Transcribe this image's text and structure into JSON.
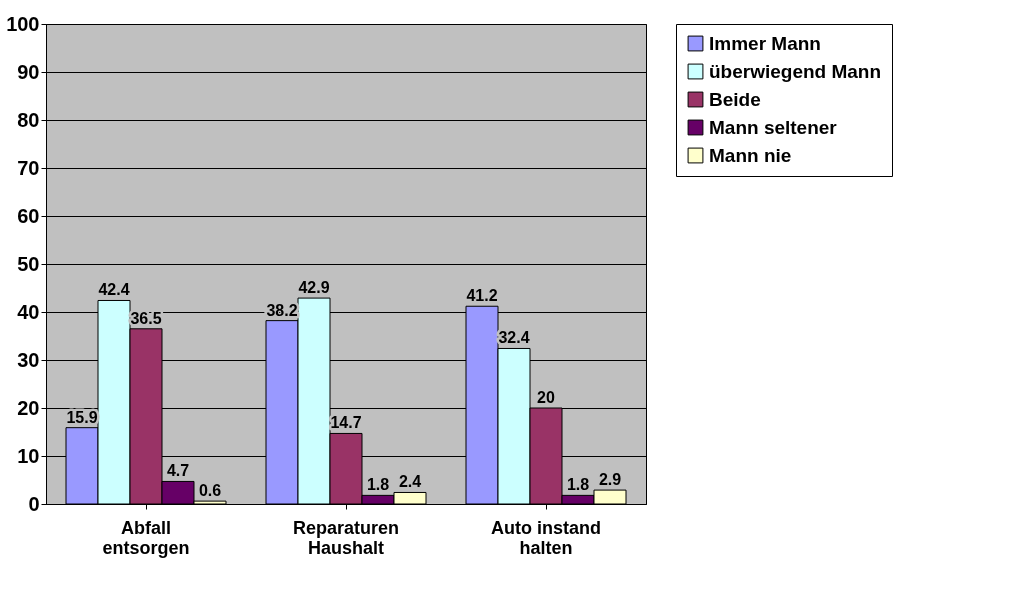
{
  "chart_data": {
    "type": "bar",
    "categories": [
      "Abfall entsorgen",
      "Reparaturen Haushalt",
      "Auto instand halten"
    ],
    "series": [
      {
        "name": "Immer Mann",
        "color": "#9999ff",
        "values": [
          15.9,
          38.2,
          41.2
        ]
      },
      {
        "name": "überwiegend Mann",
        "color": "#ccffff",
        "values": [
          42.4,
          42.9,
          32.4
        ]
      },
      {
        "name": "Beide",
        "color": "#993366",
        "values": [
          36.5,
          14.7,
          20
        ]
      },
      {
        "name": "Mann seltener",
        "color": "#660066",
        "values": [
          4.7,
          1.8,
          1.8
        ]
      },
      {
        "name": "Mann nie",
        "color": "#ffffcc",
        "values": [
          0.6,
          2.4,
          2.9
        ]
      }
    ],
    "ylim": [
      0,
      100
    ],
    "yticks": [
      0,
      10,
      20,
      30,
      40,
      50,
      60,
      70,
      80,
      90,
      100
    ],
    "grid": "y",
    "legend": "right",
    "data_labels": true
  }
}
